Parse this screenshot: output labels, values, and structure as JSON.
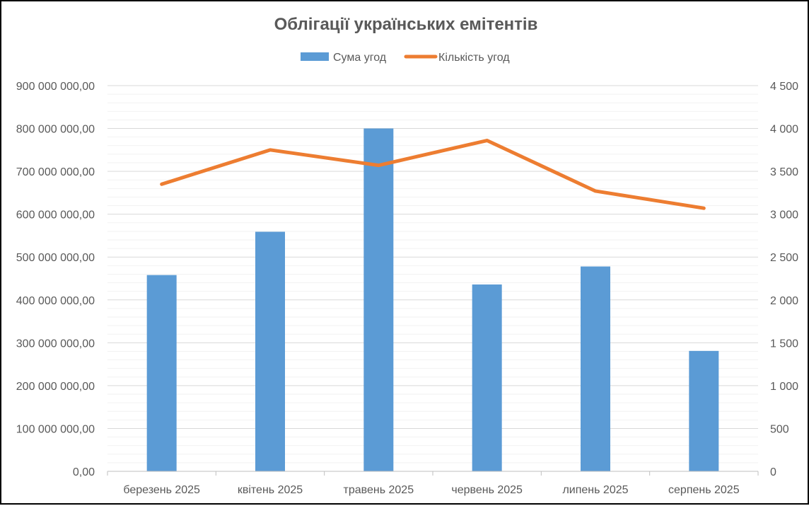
{
  "chart_data": {
    "type": "bar",
    "title": "Облігації українських емітентів",
    "categories": [
      "березень 2025",
      "квітень 2025",
      "травень 2025",
      "червень 2025",
      "липень 2025",
      "серпень 2025"
    ],
    "series": [
      {
        "name": "Сума угод",
        "type": "bar",
        "axis": "left",
        "color": "#5B9BD5",
        "values": [
          458000000,
          559000000,
          800000000,
          436000000,
          478000000,
          281000000
        ]
      },
      {
        "name": "Кількість угод",
        "type": "line",
        "axis": "right",
        "color": "#ED7D31",
        "values": [
          3350,
          3750,
          3570,
          3860,
          3270,
          3070
        ]
      }
    ],
    "y_left": {
      "ylim": [
        0,
        900000000
      ],
      "ticks": [
        0,
        100000000,
        200000000,
        300000000,
        400000000,
        500000000,
        600000000,
        700000000,
        800000000,
        900000000
      ],
      "tick_labels": [
        "0,00",
        "100 000 000,00",
        "200 000 000,00",
        "300 000 000,00",
        "400 000 000,00",
        "500 000 000,00",
        "600 000 000,00",
        "700 000 000,00",
        "800 000 000,00",
        "900 000 000,00"
      ]
    },
    "y_right": {
      "ylim": [
        0,
        4500
      ],
      "ticks": [
        0,
        500,
        1000,
        1500,
        2000,
        2500,
        3000,
        3500,
        4000,
        4500
      ],
      "tick_labels": [
        "0",
        "500",
        "1 000",
        "1 500",
        "2 000",
        "2 500",
        "3 000",
        "3 500",
        "4 000",
        "4 500"
      ]
    },
    "legend": "top-center",
    "grid": true,
    "minor_grid": true
  }
}
